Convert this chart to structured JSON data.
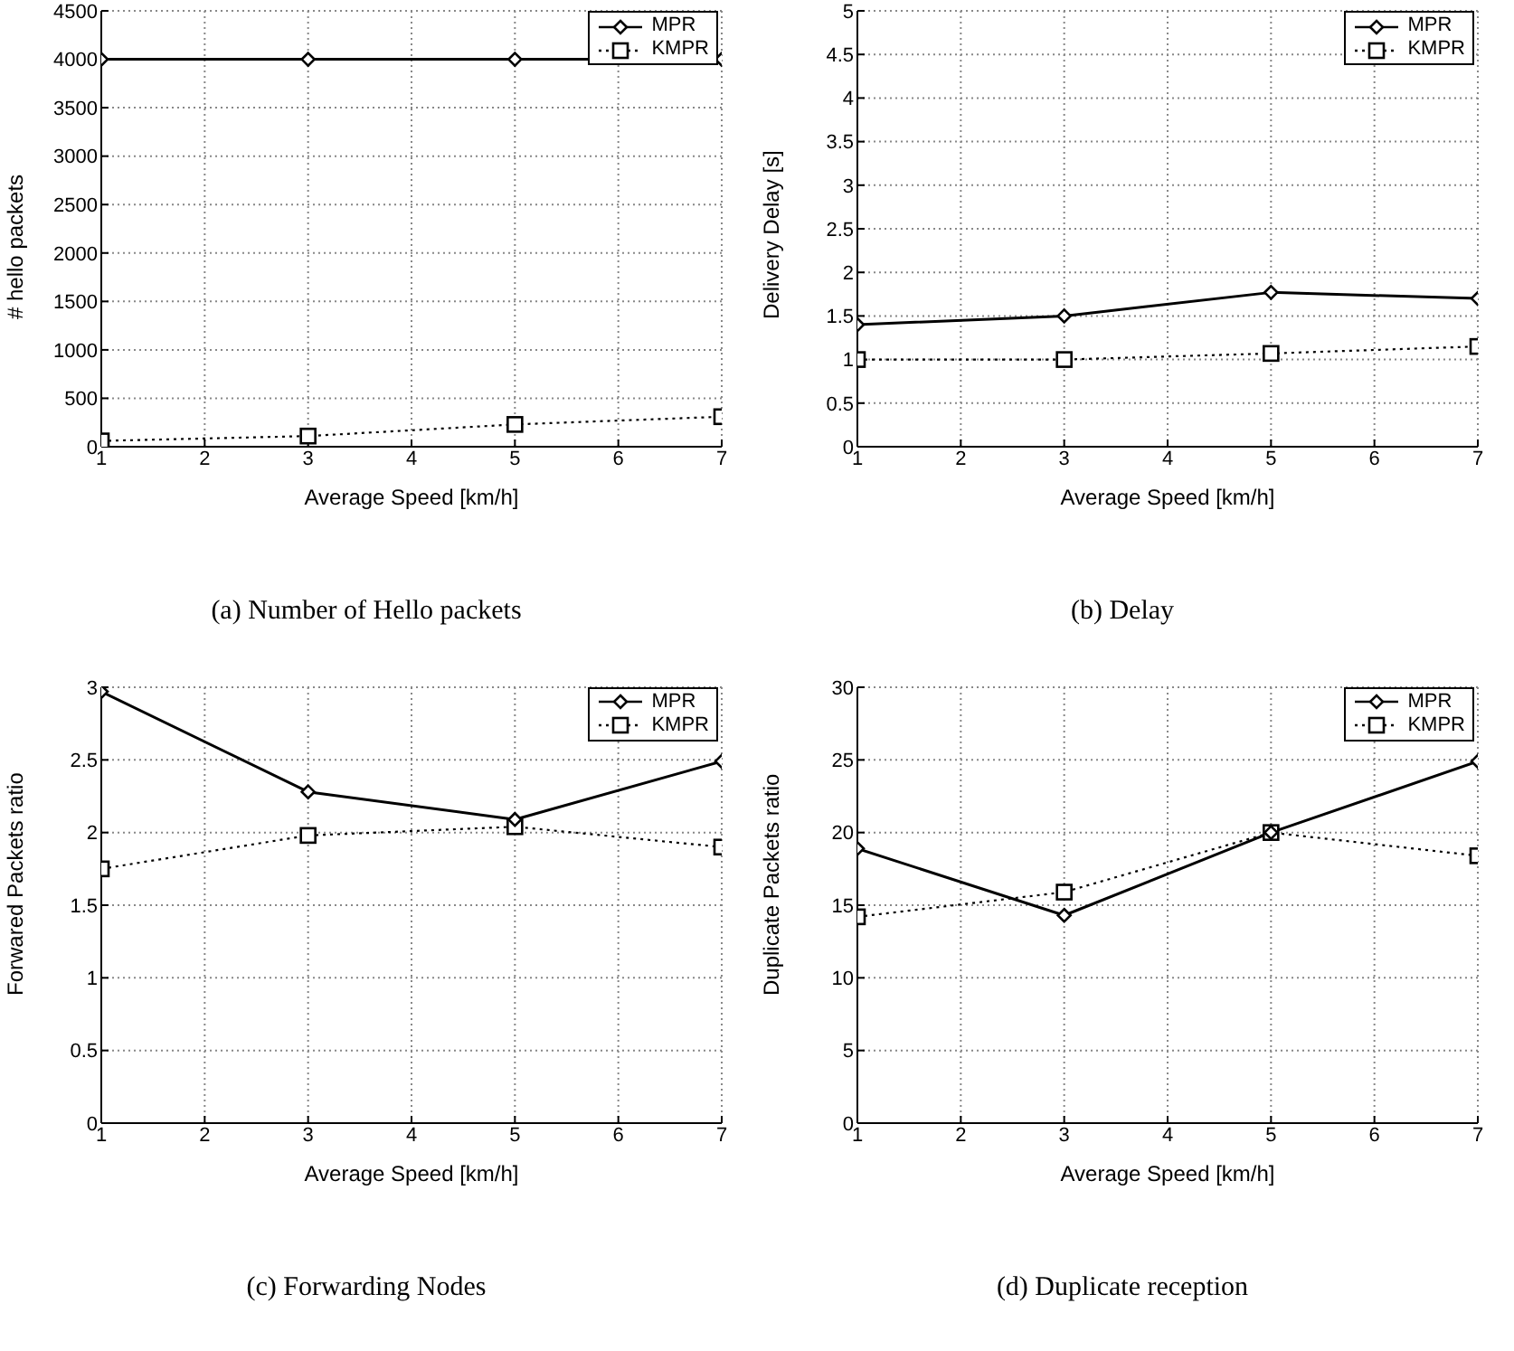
{
  "chart_data": [
    {
      "type": "line",
      "title": "(a)  Number of Hello packets",
      "xlabel": "Average Speed [km/h]",
      "ylabel": "# hello packets",
      "x": [
        1,
        3,
        5,
        7
      ],
      "xlim": [
        1,
        7
      ],
      "xticks": [
        1,
        2,
        3,
        4,
        5,
        6,
        7
      ],
      "ylim": [
        0,
        4500
      ],
      "yticks": [
        0,
        500,
        1000,
        1500,
        2000,
        2500,
        3000,
        3500,
        4000,
        4500
      ],
      "grid": true,
      "legend": "top right",
      "series": [
        {
          "name": "MPR",
          "color": "#000000",
          "values": [
            4000,
            4000,
            4000,
            4000
          ],
          "marker": "diamond",
          "line_style": "solid"
        },
        {
          "name": "KMPR",
          "color": "#000000",
          "values": [
            60,
            110,
            230,
            310
          ],
          "marker": "square",
          "line_style": "dotted"
        }
      ]
    },
    {
      "type": "line",
      "title": "(b)  Delay",
      "xlabel": "Average Speed [km/h]",
      "ylabel": "Delivery Delay [s]",
      "x": [
        1,
        3,
        5,
        7
      ],
      "xlim": [
        1,
        7
      ],
      "xticks": [
        1,
        2,
        3,
        4,
        5,
        6,
        7
      ],
      "ylim": [
        0,
        5
      ],
      "yticks": [
        0,
        0.5,
        1,
        1.5,
        2,
        2.5,
        3,
        3.5,
        4,
        4.5,
        5
      ],
      "grid": true,
      "legend": "top right",
      "series": [
        {
          "name": "MPR",
          "color": "#000000",
          "values": [
            1.4,
            1.5,
            1.77,
            1.7
          ],
          "marker": "diamond",
          "line_style": "solid"
        },
        {
          "name": "KMPR",
          "color": "#000000",
          "values": [
            1.0,
            1.0,
            1.07,
            1.15
          ],
          "marker": "square",
          "line_style": "dotted"
        }
      ]
    },
    {
      "type": "line",
      "title": "(c)  Forwarding Nodes",
      "xlabel": "Average Speed [km/h]",
      "ylabel": "Forwared Packets ratio",
      "x": [
        1,
        3,
        5,
        7
      ],
      "xlim": [
        1,
        7
      ],
      "xticks": [
        1,
        2,
        3,
        4,
        5,
        6,
        7
      ],
      "ylim": [
        0,
        3
      ],
      "yticks": [
        0,
        0.5,
        1,
        1.5,
        2,
        2.5,
        3
      ],
      "grid": true,
      "legend": "top right",
      "series": [
        {
          "name": "MPR",
          "color": "#000000",
          "values": [
            2.97,
            2.28,
            2.09,
            2.49
          ],
          "marker": "diamond",
          "line_style": "solid"
        },
        {
          "name": "KMPR",
          "color": "#000000",
          "values": [
            1.75,
            1.98,
            2.04,
            1.9
          ],
          "marker": "square",
          "line_style": "dotted"
        }
      ]
    },
    {
      "type": "line",
      "title": "(d)  Duplicate reception",
      "xlabel": "Average Speed [km/h]",
      "ylabel": "Duplicate Packets ratio",
      "x": [
        1,
        3,
        5,
        7
      ],
      "xlim": [
        1,
        7
      ],
      "xticks": [
        1,
        2,
        3,
        4,
        5,
        6,
        7
      ],
      "ylim": [
        0,
        30
      ],
      "yticks": [
        0,
        5,
        10,
        15,
        20,
        25,
        30
      ],
      "grid": true,
      "legend": "top right",
      "series": [
        {
          "name": "MPR",
          "color": "#000000",
          "values": [
            18.9,
            14.3,
            20,
            24.9
          ],
          "marker": "diamond",
          "line_style": "solid"
        },
        {
          "name": "KMPR",
          "color": "#000000",
          "values": [
            14.2,
            15.9,
            20,
            18.4
          ],
          "marker": "square",
          "line_style": "dotted"
        }
      ]
    }
  ]
}
